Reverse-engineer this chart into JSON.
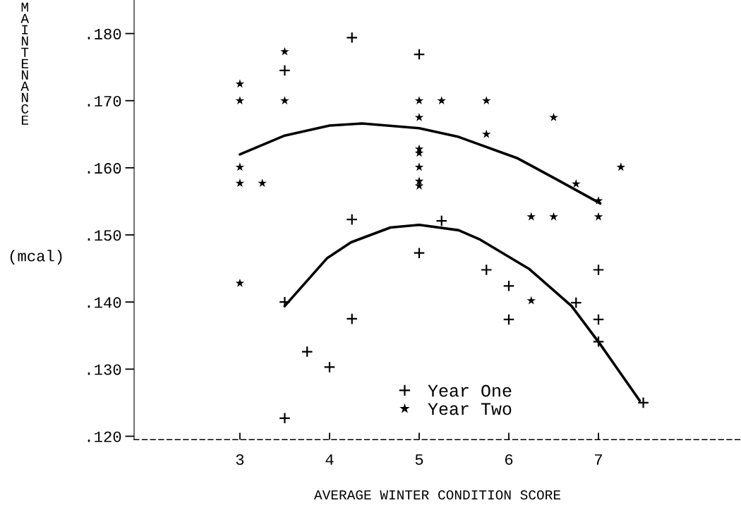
{
  "chart_data": {
    "type": "scatter",
    "xlabel": "AVERAGE WINTER CONDITION SCORE",
    "ylabel": "MAINTENANCE",
    "annotations": [
      "(mcal)"
    ],
    "xlim": [
      1.82,
      8.59
    ],
    "ylim": [
      0.1195,
      0.185
    ],
    "xticks": [
      3,
      4,
      5,
      6,
      7
    ],
    "yticks": [
      {
        "value": 0.12,
        "label": ".120"
      },
      {
        "value": 0.13,
        "label": ".130"
      },
      {
        "value": 0.14,
        "label": ".140"
      },
      {
        "value": 0.15,
        "label": ".150"
      },
      {
        "value": 0.16,
        "label": ".160"
      },
      {
        "value": 0.17,
        "label": ".170"
      },
      {
        "value": 0.18,
        "label": ".180"
      }
    ],
    "grid": false,
    "legend": "bottom",
    "series": [
      {
        "name": "Year One",
        "color": "#000000",
        "marker": "cross",
        "x": [
          4.25,
          5,
          3.5,
          4.25,
          5.25,
          5,
          3.5,
          4.25,
          3.75,
          4,
          3.5,
          5.75,
          6,
          6,
          6.75,
          7,
          7,
          7,
          7.5
        ],
        "values": [
          0.1794,
          0.1769,
          0.1745,
          0.1523,
          0.1521,
          0.1473,
          0.14,
          0.1375,
          0.1326,
          0.1303,
          0.1227,
          0.1448,
          0.1424,
          0.1374,
          0.1399,
          0.1448,
          0.1374,
          0.1341,
          0.125
        ]
      },
      {
        "name": "Year Two",
        "color": "#000000",
        "marker": "star",
        "x": [
          3.5,
          3,
          3,
          3.5,
          5,
          5.25,
          5,
          5,
          5,
          3,
          5,
          3,
          3.25,
          5,
          5,
          5.75,
          6.5,
          5.75,
          7.25,
          6.75,
          7,
          6.25,
          6.5,
          7,
          3,
          6.25
        ],
        "values": [
          0.1773,
          0.1725,
          0.17,
          0.17,
          0.17,
          0.17,
          0.1675,
          0.1628,
          0.1622,
          0.1601,
          0.1601,
          0.1577,
          0.1577,
          0.158,
          0.1573,
          0.17,
          0.1675,
          0.165,
          0.1601,
          0.1576,
          0.1551,
          0.1527,
          0.1527,
          0.1527,
          0.1428,
          0.1402
        ]
      },
      {
        "type": "line",
        "color": "#000000",
        "marker": "none",
        "line_style": "solid",
        "x": [
          3,
          3.5,
          4,
          4.36,
          5,
          5.44,
          6.1,
          6.53,
          7.02
        ],
        "values": [
          0.162,
          0.1648,
          0.1663,
          0.1666,
          0.1659,
          0.1646,
          0.1614,
          0.1583,
          0.1547
        ]
      },
      {
        "type": "line",
        "color": "#000000",
        "marker": "none",
        "line_style": "solid",
        "x": [
          3.5,
          3.97,
          4.24,
          4.68,
          5,
          5.44,
          5.68,
          6.23,
          6.7,
          7.02,
          7.46
        ],
        "values": [
          0.1394,
          0.1465,
          0.1489,
          0.1511,
          0.1515,
          0.1507,
          0.1493,
          0.1449,
          0.1394,
          0.1337,
          0.1253
        ]
      }
    ]
  }
}
